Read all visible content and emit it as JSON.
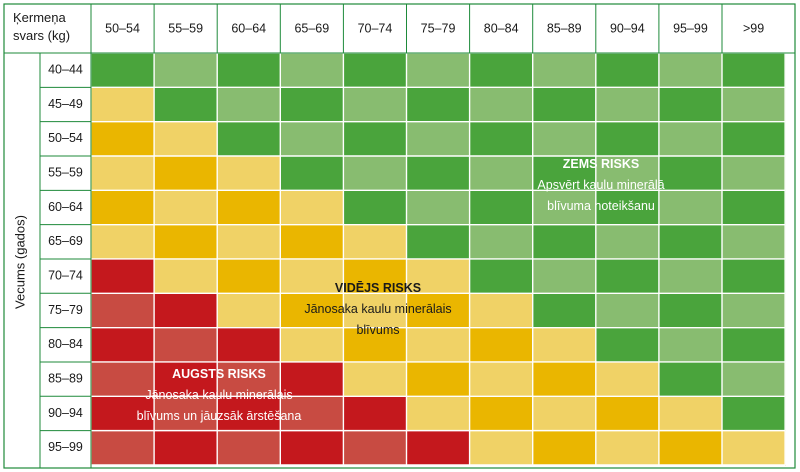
{
  "chart_data": {
    "type": "heatmap",
    "corner_label_lines": [
      "Ķermeņa",
      "svars (kg)"
    ],
    "row_axis_label": "Vecums (gados)",
    "columns": [
      "50–54",
      "55–59",
      "60–64",
      "65–69",
      "70–74",
      "75–79",
      "80–84",
      "85–89",
      "90–94",
      "95–99",
      ">99"
    ],
    "rows": [
      "40–44",
      "45–49",
      "50–54",
      "55–59",
      "60–64",
      "65–69",
      "70–74",
      "75–79",
      "80–84",
      "85–89",
      "90–94",
      "95–99"
    ],
    "risk_levels": {
      "0": {
        "name": "Zems risks",
        "colors": [
          "#4aa43c",
          "#88bc70"
        ]
      },
      "1": {
        "name": "Vidējs risks",
        "colors": [
          "#eab600",
          "#f0d266"
        ]
      },
      "2": {
        "name": "Augsts risks",
        "colors": [
          "#c4181d",
          "#c84b42"
        ]
      }
    },
    "risk_matrix": [
      [
        0,
        0,
        0,
        0,
        0,
        0,
        0,
        0,
        0,
        0,
        0
      ],
      [
        1,
        0,
        0,
        0,
        0,
        0,
        0,
        0,
        0,
        0,
        0
      ],
      [
        1,
        1,
        0,
        0,
        0,
        0,
        0,
        0,
        0,
        0,
        0
      ],
      [
        1,
        1,
        1,
        0,
        0,
        0,
        0,
        0,
        0,
        0,
        0
      ],
      [
        1,
        1,
        1,
        1,
        0,
        0,
        0,
        0,
        0,
        0,
        0
      ],
      [
        1,
        1,
        1,
        1,
        1,
        0,
        0,
        0,
        0,
        0,
        0
      ],
      [
        2,
        1,
        1,
        1,
        1,
        1,
        0,
        0,
        0,
        0,
        0
      ],
      [
        2,
        2,
        1,
        1,
        1,
        1,
        1,
        0,
        0,
        0,
        0
      ],
      [
        2,
        2,
        2,
        1,
        1,
        1,
        1,
        1,
        0,
        0,
        0
      ],
      [
        2,
        2,
        2,
        2,
        1,
        1,
        1,
        1,
        1,
        0,
        0
      ],
      [
        2,
        2,
        2,
        2,
        2,
        1,
        1,
        1,
        1,
        1,
        0
      ],
      [
        2,
        2,
        2,
        2,
        2,
        2,
        1,
        1,
        1,
        1,
        1
      ]
    ],
    "annotations": [
      {
        "id": "low",
        "title": "ZEMS RISKS",
        "lines": [
          "Apsvērt kaulu minerālā",
          "blīvuma noteikšanu"
        ],
        "text_color": "#ffffff"
      },
      {
        "id": "medium",
        "title": "VIDĒJS RISKS",
        "lines": [
          "Jānosaka kaulu minerālais",
          "blīvums"
        ],
        "text_color": "#1a1a1a"
      },
      {
        "id": "high",
        "title": "AUGSTS RISKS",
        "lines": [
          "Jānosaka kaulu minerālais",
          "blīvums un jāuzsāk ārstēšana"
        ],
        "text_color": "#ffffff"
      }
    ]
  }
}
